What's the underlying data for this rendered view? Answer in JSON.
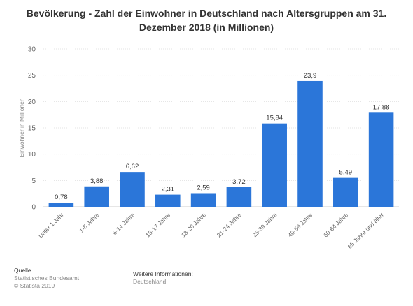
{
  "page": {
    "title": "Bevölkerung - Zahl der Einwohner in Deutschland nach Altersgruppen am 31. Dezember 2018 (in Millionen)"
  },
  "chart_data": {
    "type": "bar",
    "title": "Bevölkerung - Zahl der Einwohner in Deutschland nach Altersgruppen am 31. Dezember 2018 (in Millionen)",
    "xlabel": "",
    "ylabel": "Einwohner in Millionen",
    "ylim": [
      0,
      30
    ],
    "yticks": [
      0,
      5,
      10,
      15,
      20,
      25,
      30
    ],
    "grid": true,
    "bar_color": "#2b76d9",
    "categories": [
      "Unter 1 Jahr",
      "1-5 Jahre",
      "6-14 Jahre",
      "15-17 Jahre",
      "18-20 Jahre",
      "21-24 Jahre",
      "25-39 Jahre",
      "40-59 Jahre",
      "60-64 Jahre",
      "65 Jahre und älter"
    ],
    "values": [
      0.78,
      3.88,
      6.62,
      2.31,
      2.59,
      3.72,
      15.84,
      23.9,
      5.49,
      17.88
    ],
    "value_labels": [
      "0,78",
      "3,88",
      "6,62",
      "2,31",
      "2,59",
      "3,72",
      "15,84",
      "23,9",
      "5,49",
      "17,88"
    ]
  },
  "footer": {
    "source_heading": "Quelle",
    "source_line1": "Statistisches Bundesamt",
    "source_line2": "© Statista 2019",
    "info_heading": "Weitere Informationen:",
    "info_line1": "Deutschland"
  }
}
